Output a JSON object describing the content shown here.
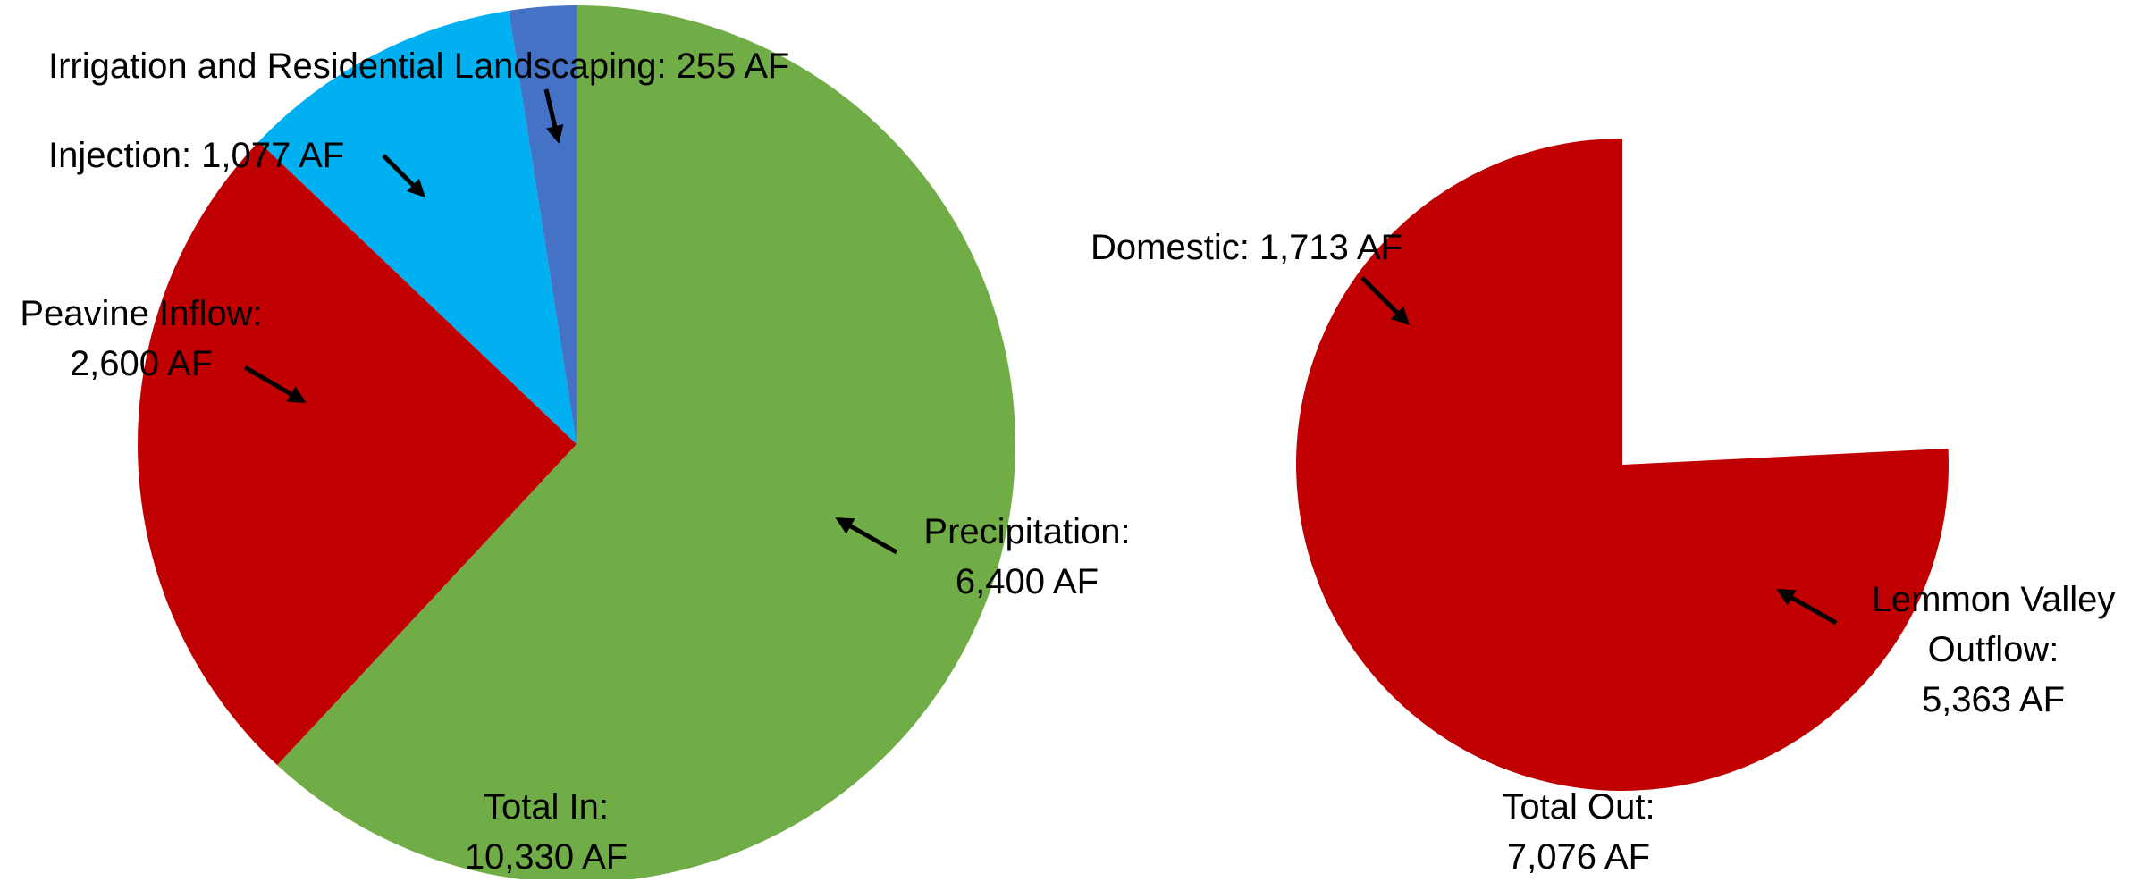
{
  "chart_data": [
    {
      "type": "pie",
      "title": "Total In:",
      "subtitle": "10,330 AF",
      "categories": [
        "Precipitation:",
        "Peavine Inflow:",
        "Injection:",
        "Irrigation and Residential Landscaping:"
      ],
      "values": [
        6400,
        2600,
        1077,
        255
      ],
      "value_labels": [
        "6,400 AF",
        "2,600 AF",
        "1,077 AF",
        "255 AF"
      ],
      "colors": [
        "#70ad47",
        "#c00000",
        "#00b0f0",
        "#4472c4"
      ]
    },
    {
      "type": "pie",
      "title": "Total Out:",
      "subtitle": "7,076 AF",
      "categories": [
        "Domestic:",
        "Lemmon Valley Outflow:"
      ],
      "values": [
        1713,
        5363
      ],
      "value_labels": [
        "1,713 AF",
        "5,363 AF"
      ],
      "colors": [
        "#ffffff",
        "#c00000"
      ]
    }
  ]
}
